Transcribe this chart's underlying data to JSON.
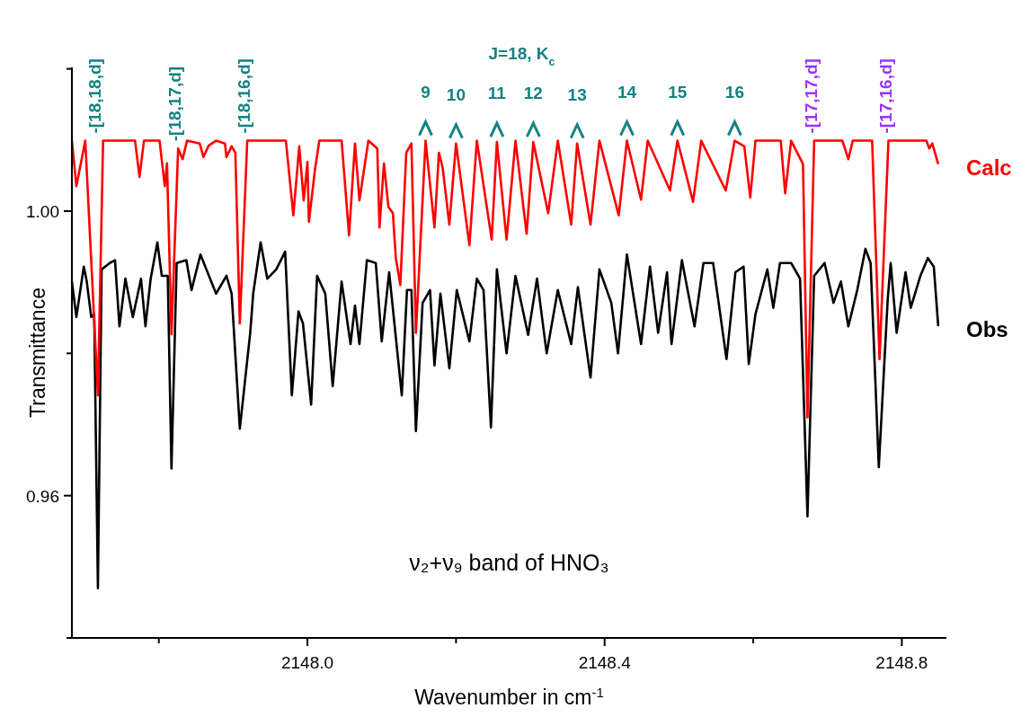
{
  "chart_data": {
    "type": "line",
    "title": "J=18, K$_{c}$",
    "xlabel": "Wavenumber in cm$^{-1}$",
    "ylabel": "Transmittance",
    "xlim": [
      2147.683,
      2148.86
    ],
    "ylim": [
      0.94,
      1.0202
    ],
    "xticks": [
      {
        "value": 2147.8,
        "label": null
      },
      {
        "value": 2148,
        "label": "2148.0"
      },
      {
        "value": 2148.2,
        "label": null
      },
      2148.4,
      {
        "value": 2148.6,
        "label": null
      },
      2148.8
    ],
    "yticks": [
      {
        "value": 0.94,
        "label": null
      },
      0.96,
      {
        "value": 0.98,
        "label": null
      },
      {
        "value": 1,
        "label": "1.00"
      },
      {
        "value": 1.02,
        "label": null
      }
    ],
    "grid": false,
    "line_style": "solid",
    "marker": "none",
    "series": [
      {
        "name": "Obs",
        "color": "#000000",
        "x": [
          2147.683,
          2147.689,
          2147.699,
          2147.703,
          2147.709,
          2147.713,
          2147.718,
          2147.723,
          2147.734,
          2147.741,
          2147.747,
          2147.755,
          2147.765,
          2147.776,
          2147.782,
          2147.789,
          2147.798,
          2147.804,
          2147.812,
          2147.817,
          2147.824,
          2147.837,
          2147.844,
          2147.856,
          2147.877,
          2147.891,
          2147.898,
          2147.909,
          2147.923,
          2147.927,
          2147.937,
          2147.946,
          2147.958,
          2147.97,
          2147.979,
          2147.988,
          2147.994,
          2148.005,
          2148.013,
          2148.024,
          2148.034,
          2148.046,
          2148.058,
          2148.064,
          2148.07,
          2148.08,
          2148.092,
          2148.1,
          2148.11,
          2148.127,
          2148.134,
          2148.14,
          2148.146,
          2148.155,
          2148.165,
          2148.171,
          2148.179,
          2148.191,
          2148.201,
          2148.218,
          2148.228,
          2148.237,
          2148.247,
          2148.255,
          2148.268,
          2148.28,
          2148.297,
          2148.309,
          2148.322,
          2148.337,
          2148.355,
          2148.364,
          2148.381,
          2148.393,
          2148.409,
          2148.418,
          2148.43,
          2148.449,
          2148.461,
          2148.472,
          2148.484,
          2148.49,
          2148.504,
          2148.521,
          2148.533,
          2148.546,
          2148.564,
          2148.576,
          2148.587,
          2148.594,
          2148.603,
          2148.619,
          2148.627,
          2148.636,
          2148.651,
          2148.663,
          2148.673,
          2148.682,
          2148.696,
          2148.708,
          2148.718,
          2148.728,
          2148.74,
          2148.751,
          2148.758,
          2148.769,
          2148.781,
          2148.785,
          2148.793,
          2148.805,
          2148.812,
          2148.825,
          2148.835,
          2148.843,
          2148.849
        ],
        "values": [
          0.9901,
          0.9851,
          0.9922,
          0.9901,
          0.9851,
          0.9855,
          0.947,
          0.9918,
          0.9927,
          0.9931,
          0.9838,
          0.9905,
          0.9851,
          0.9905,
          0.9838,
          0.9905,
          0.9956,
          0.9909,
          0.9909,
          0.9638,
          0.9927,
          0.9931,
          0.9889,
          0.9939,
          0.9884,
          0.9909,
          0.9884,
          0.9694,
          0.9829,
          0.9884,
          0.9956,
          0.9905,
          0.9918,
          0.9943,
          0.9741,
          0.9859,
          0.9842,
          0.9728,
          0.9909,
          0.9884,
          0.9754,
          0.9901,
          0.9813,
          0.9867,
          0.9813,
          0.9931,
          0.9927,
          0.9817,
          0.9914,
          0.9741,
          0.9889,
          0.9889,
          0.9691,
          0.9871,
          0.9889,
          0.9783,
          0.9884,
          0.9779,
          0.9889,
          0.9817,
          0.9905,
          0.9889,
          0.9696,
          0.9918,
          0.98,
          0.9909,
          0.9826,
          0.9905,
          0.98,
          0.9889,
          0.9813,
          0.9893,
          0.9766,
          0.9918,
          0.9871,
          0.98,
          0.9939,
          0.9813,
          0.9922,
          0.9829,
          0.9914,
          0.9813,
          0.9931,
          0.9838,
          0.9927,
          0.9927,
          0.9792,
          0.9914,
          0.9922,
          0.9785,
          0.9855,
          0.9918,
          0.9864,
          0.9927,
          0.9927,
          0.9905,
          0.9571,
          0.9909,
          0.9927,
          0.9871,
          0.9901,
          0.9838,
          0.9889,
          0.9947,
          0.9927,
          0.964,
          0.9876,
          0.9927,
          0.9829,
          0.9914,
          0.9864,
          0.9909,
          0.9934,
          0.9922,
          0.9838
        ]
      },
      {
        "name": "Calc",
        "color": "#ff0000",
        "x": [
          2147.683,
          2147.689,
          2147.701,
          2147.718,
          2147.725,
          2147.768,
          2147.774,
          2147.78,
          2147.801,
          2147.808,
          2147.811,
          2147.817,
          2147.826,
          2147.832,
          2147.838,
          2147.855,
          2147.86,
          2147.867,
          2147.877,
          2147.889,
          2147.891,
          2147.898,
          2147.903,
          2147.909,
          2147.919,
          2147.971,
          2147.981,
          2147.989,
          2147.995,
          2148.0,
          2148.002,
          2148.01,
          2148.016,
          2148.046,
          2148.056,
          2148.064,
          2148.07,
          2148.082,
          2148.094,
          2148.097,
          2148.103,
          2148.109,
          2148.115,
          2148.119,
          2148.125,
          2148.133,
          2148.14,
          2148.146,
          2148.159,
          2148.171,
          2148.177,
          2148.182,
          2148.191,
          2148.2,
          2148.218,
          2148.228,
          2148.248,
          2148.255,
          2148.268,
          2148.28,
          2148.295,
          2148.304,
          2148.324,
          2148.337,
          2148.355,
          2148.363,
          2148.381,
          2148.393,
          2148.419,
          2148.43,
          2148.449,
          2148.458,
          2148.488,
          2148.498,
          2148.519,
          2148.53,
          2148.563,
          2148.575,
          2148.588,
          2148.596,
          2148.603,
          2148.637,
          2148.643,
          2148.651,
          2148.667,
          2148.673,
          2148.682,
          2148.72,
          2148.728,
          2148.734,
          2148.76,
          2148.77,
          2148.782,
          2148.833,
          2148.837,
          2148.841,
          2148.849
        ],
        "values": [
          1.0099,
          1.0035,
          1.0099,
          0.9741,
          1.0099,
          1.0099,
          1.0048,
          1.0099,
          1.0099,
          1.0035,
          1.0067,
          0.9827,
          1.0088,
          1.0073,
          1.0099,
          1.0095,
          1.0076,
          1.0092,
          1.0099,
          1.0095,
          1.0076,
          1.0091,
          1.0082,
          0.9842,
          1.0099,
          1.0099,
          0.9994,
          1.0091,
          1.0015,
          1.0069,
          0.9985,
          1.0057,
          1.0099,
          1.0099,
          0.9966,
          1.0095,
          1.0015,
          1.0099,
          1.0088,
          0.9977,
          1.0067,
          1.0006,
          0.9997,
          0.9934,
          0.9896,
          1.0082,
          1.0095,
          0.9829,
          1.0099,
          0.9977,
          1.0082,
          1.0061,
          0.9981,
          1.0095,
          0.9952,
          1.0099,
          0.996,
          1.0097,
          0.996,
          1.0099,
          0.9968,
          1.0097,
          0.9997,
          1.0099,
          0.9981,
          1.0095,
          0.9981,
          1.0099,
          0.9994,
          1.0099,
          1.0016,
          1.0099,
          1.0029,
          1.0099,
          1.0013,
          1.0099,
          1.0029,
          1.0099,
          1.0091,
          1.0019,
          1.0099,
          1.0099,
          1.0025,
          1.0099,
          1.0066,
          0.971,
          1.0099,
          1.0099,
          1.0073,
          1.0099,
          1.0099,
          0.9792,
          1.0099,
          1.0099,
          1.0088,
          1.0095,
          1.0066
        ]
      }
    ],
    "annotations": [
      {
        "text": "-[18,18,d]",
        "x": 2147.718,
        "y": 1.0099
      },
      {
        "text": "-[18,17,d]",
        "x": 2147.826,
        "y": 1.0088
      },
      {
        "text": "-[18,16,d]",
        "x": 2147.919,
        "y": 1.0099
      },
      {
        "text": "-[17,17,d]",
        "x": 2148.682,
        "y": 1.0099
      },
      {
        "text": "-[17,16,d]",
        "x": 2148.782,
        "y": 1.0099
      },
      {
        "text": "9",
        "x": 2148.159,
        "y": 1.0099
      },
      {
        "text": "10",
        "x": 2148.2,
        "y": 1.0095
      },
      {
        "text": "11",
        "x": 2148.255,
        "y": 1.0097
      },
      {
        "text": "12",
        "x": 2148.304,
        "y": 1.0097
      },
      {
        "text": "13",
        "x": 2148.363,
        "y": 1.0095
      },
      {
        "text": "14",
        "x": 2148.43,
        "y": 1.0099
      },
      {
        "text": "15",
        "x": 2148.498,
        "y": 1.0099
      },
      {
        "text": "16",
        "x": 2148.575,
        "y": 1.0099
      },
      "ν₂+ν₉ band of HNO₃"
    ]
  }
}
